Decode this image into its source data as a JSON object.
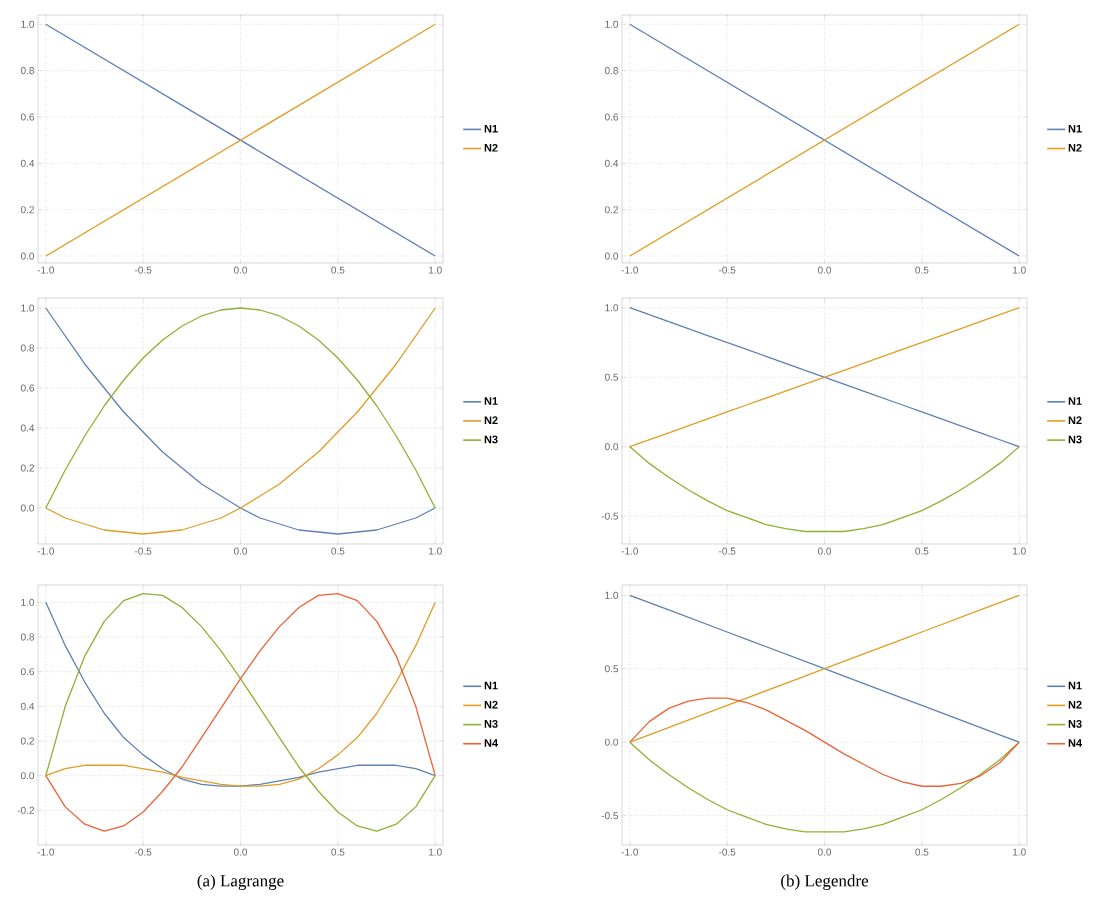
{
  "chart_data": [
    {
      "type": "line",
      "x": [
        -1,
        1
      ],
      "xlim": [
        -1.04,
        1.04
      ],
      "ylim": [
        -0.03,
        1.04
      ],
      "xticks": [
        {
          "value": -1,
          "label": "-1.0"
        },
        {
          "value": -0.5,
          "label": "-0.5"
        },
        {
          "value": 0,
          "label": "0.0"
        },
        {
          "value": 0.5,
          "label": "0.5"
        },
        {
          "value": 1,
          "label": "1.0"
        }
      ],
      "yticks": [
        {
          "value": 0,
          "label": "0.0"
        },
        {
          "value": 0.2,
          "label": "0.2"
        },
        {
          "value": 0.4,
          "label": "0.4"
        },
        {
          "value": 0.6,
          "label": "0.6"
        },
        {
          "value": 0.8,
          "label": "0.8"
        },
        {
          "value": 1,
          "label": "1.0"
        }
      ],
      "grid": true,
      "legend": "right",
      "series": [
        {
          "name": "N1",
          "color": "#5e81b5",
          "values": [
            1,
            0
          ]
        },
        {
          "name": "N2",
          "color": "#e19c24",
          "values": [
            0,
            1
          ]
        }
      ]
    },
    {
      "type": "line",
      "x": [
        -1,
        -0.9,
        -0.8,
        -0.7,
        -0.6,
        -0.5,
        -0.4,
        -0.3,
        -0.2,
        -0.1,
        0,
        0.1,
        0.2,
        0.3,
        0.4,
        0.5,
        0.6,
        0.7,
        0.8,
        0.9,
        1
      ],
      "xlim": [
        -1.04,
        1.04
      ],
      "ylim": [
        -0.18,
        1.05
      ],
      "xticks": [
        {
          "value": -1,
          "label": "-1.0"
        },
        {
          "value": -0.5,
          "label": "-0.5"
        },
        {
          "value": 0,
          "label": "0.0"
        },
        {
          "value": 0.5,
          "label": "0.5"
        },
        {
          "value": 1,
          "label": "1.0"
        }
      ],
      "yticks": [
        {
          "value": 0,
          "label": "0.0"
        },
        {
          "value": 0.2,
          "label": "0.2"
        },
        {
          "value": 0.4,
          "label": "0.4"
        },
        {
          "value": 0.6,
          "label": "0.6"
        },
        {
          "value": 0.8,
          "label": "0.8"
        },
        {
          "value": 1,
          "label": "1.0"
        }
      ],
      "grid": true,
      "legend": "right",
      "series": [
        {
          "name": "N1",
          "color": "#5e81b5",
          "values": [
            1,
            0.86,
            0.72,
            0.6,
            0.48,
            0.38,
            0.28,
            0.2,
            0.12,
            0.06,
            0,
            -0.05,
            -0.08,
            -0.11,
            -0.12,
            -0.13,
            -0.12,
            -0.11,
            -0.08,
            -0.05,
            0
          ]
        },
        {
          "name": "N2",
          "color": "#e19c24",
          "values": [
            0,
            -0.05,
            -0.08,
            -0.11,
            -0.12,
            -0.13,
            -0.12,
            -0.11,
            -0.08,
            -0.05,
            0,
            0.06,
            0.12,
            0.2,
            0.28,
            0.38,
            0.48,
            0.6,
            0.72,
            0.86,
            1
          ]
        },
        {
          "name": "N3",
          "color": "#8fb032",
          "values": [
            0,
            0.19,
            0.36,
            0.51,
            0.64,
            0.75,
            0.84,
            0.91,
            0.96,
            0.99,
            1,
            0.99,
            0.96,
            0.91,
            0.84,
            0.75,
            0.64,
            0.51,
            0.36,
            0.19,
            0
          ]
        }
      ]
    },
    {
      "type": "line",
      "x": [
        -1,
        -0.9,
        -0.8,
        -0.7,
        -0.6,
        -0.5,
        -0.4,
        -0.3,
        -0.2,
        -0.1,
        0,
        0.1,
        0.2,
        0.3,
        0.4,
        0.5,
        0.6,
        0.7,
        0.8,
        0.9,
        1
      ],
      "xlim": [
        -1.04,
        1.04
      ],
      "ylim": [
        -0.4,
        1.1
      ],
      "xticks": [
        {
          "value": -1,
          "label": "-1.0"
        },
        {
          "value": -0.5,
          "label": "-0.5"
        },
        {
          "value": 0,
          "label": "0.0"
        },
        {
          "value": 0.5,
          "label": "0.5"
        },
        {
          "value": 1,
          "label": "1.0"
        }
      ],
      "yticks": [
        {
          "value": -0.2,
          "label": "-0.2"
        },
        {
          "value": 0,
          "label": "0.0"
        },
        {
          "value": 0.2,
          "label": "0.2"
        },
        {
          "value": 0.4,
          "label": "0.4"
        },
        {
          "value": 0.6,
          "label": "0.6"
        },
        {
          "value": 0.8,
          "label": "0.8"
        },
        {
          "value": 1,
          "label": "1.0"
        }
      ],
      "grid": true,
      "legend": "right",
      "annotations": [
        "(a)  Lagrange"
      ],
      "series": [
        {
          "name": "N1",
          "color": "#5e81b5",
          "values": [
            1,
            0.75,
            0.54,
            0.36,
            0.22,
            0.12,
            0.04,
            -0.02,
            -0.05,
            -0.06,
            -0.06,
            -0.05,
            -0.03,
            -0.01,
            0.02,
            0.04,
            0.06,
            0.06,
            0.06,
            0.04,
            0
          ]
        },
        {
          "name": "N2",
          "color": "#e19c24",
          "values": [
            0,
            0.04,
            0.06,
            0.06,
            0.06,
            0.04,
            0.02,
            -0.01,
            -0.03,
            -0.05,
            -0.06,
            -0.06,
            -0.05,
            -0.02,
            0.04,
            0.12,
            0.22,
            0.36,
            0.54,
            0.75,
            1
          ]
        },
        {
          "name": "N3",
          "color": "#8fb032",
          "values": [
            0,
            0.4,
            0.69,
            0.89,
            1.01,
            1.05,
            1.04,
            0.97,
            0.86,
            0.72,
            0.56,
            0.39,
            0.22,
            0.05,
            -0.09,
            -0.21,
            -0.29,
            -0.32,
            -0.28,
            -0.18,
            0
          ]
        },
        {
          "name": "N4",
          "color": "#eb6235",
          "values": [
            0,
            -0.18,
            -0.28,
            -0.32,
            -0.29,
            -0.21,
            -0.09,
            0.05,
            0.22,
            0.39,
            0.56,
            0.72,
            0.86,
            0.97,
            1.04,
            1.05,
            1.01,
            0.89,
            0.69,
            0.4,
            0
          ]
        }
      ]
    },
    {
      "type": "line",
      "x": [
        -1,
        1
      ],
      "xlim": [
        -1.04,
        1.04
      ],
      "ylim": [
        -0.03,
        1.04
      ],
      "xticks": [
        {
          "value": -1,
          "label": "-1.0"
        },
        {
          "value": -0.5,
          "label": "-0.5"
        },
        {
          "value": 0,
          "label": "0.0"
        },
        {
          "value": 0.5,
          "label": "0.5"
        },
        {
          "value": 1,
          "label": "1.0"
        }
      ],
      "yticks": [
        {
          "value": 0,
          "label": "0.0"
        },
        {
          "value": 0.2,
          "label": "0.2"
        },
        {
          "value": 0.4,
          "label": "0.4"
        },
        {
          "value": 0.6,
          "label": "0.6"
        },
        {
          "value": 0.8,
          "label": "0.8"
        },
        {
          "value": 1,
          "label": "1.0"
        }
      ],
      "grid": true,
      "legend": "right",
      "series": [
        {
          "name": "N1",
          "color": "#5e81b5",
          "values": [
            1,
            0
          ]
        },
        {
          "name": "N2",
          "color": "#e19c24",
          "values": [
            0,
            1
          ]
        }
      ]
    },
    {
      "type": "line",
      "x": [
        -1,
        -0.9,
        -0.8,
        -0.7,
        -0.6,
        -0.5,
        -0.4,
        -0.3,
        -0.2,
        -0.1,
        0,
        0.1,
        0.2,
        0.3,
        0.4,
        0.5,
        0.6,
        0.7,
        0.8,
        0.9,
        1
      ],
      "xlim": [
        -1.04,
        1.04
      ],
      "ylim": [
        -0.7,
        1.07
      ],
      "xticks": [
        {
          "value": -1,
          "label": "-1.0"
        },
        {
          "value": -0.5,
          "label": "-0.5"
        },
        {
          "value": 0,
          "label": "0.0"
        },
        {
          "value": 0.5,
          "label": "0.5"
        },
        {
          "value": 1,
          "label": "1.0"
        }
      ],
      "yticks": [
        {
          "value": -0.5,
          "label": "-0.5"
        },
        {
          "value": 0,
          "label": "0.0"
        },
        {
          "value": 0.5,
          "label": "0.5"
        },
        {
          "value": 1,
          "label": "1.0"
        }
      ],
      "grid": true,
      "legend": "right",
      "series": [
        {
          "name": "N1",
          "color": "#5e81b5",
          "values": [
            1,
            0.95,
            0.9,
            0.85,
            0.8,
            0.75,
            0.7,
            0.65,
            0.6,
            0.55,
            0.5,
            0.45,
            0.4,
            0.35,
            0.3,
            0.25,
            0.2,
            0.15,
            0.1,
            0.05,
            0
          ]
        },
        {
          "name": "N2",
          "color": "#e19c24",
          "values": [
            0,
            0.05,
            0.1,
            0.15,
            0.2,
            0.25,
            0.3,
            0.35,
            0.4,
            0.45,
            0.5,
            0.55,
            0.6,
            0.65,
            0.7,
            0.75,
            0.8,
            0.85,
            0.9,
            0.95,
            1
          ]
        },
        {
          "name": "N3",
          "color": "#8fb032",
          "values": [
            0,
            -0.12,
            -0.22,
            -0.31,
            -0.39,
            -0.46,
            -0.51,
            -0.56,
            -0.59,
            -0.61,
            -0.61,
            -0.61,
            -0.59,
            -0.56,
            -0.51,
            -0.46,
            -0.39,
            -0.31,
            -0.22,
            -0.12,
            0
          ]
        }
      ]
    },
    {
      "type": "line",
      "x": [
        -1,
        -0.9,
        -0.8,
        -0.7,
        -0.6,
        -0.5,
        -0.4,
        -0.3,
        -0.2,
        -0.1,
        0,
        0.1,
        0.2,
        0.3,
        0.4,
        0.5,
        0.6,
        0.7,
        0.8,
        0.9,
        1
      ],
      "xlim": [
        -1.04,
        1.04
      ],
      "ylim": [
        -0.7,
        1.07
      ],
      "xticks": [
        {
          "value": -1,
          "label": "-1.0"
        },
        {
          "value": -0.5,
          "label": "-0.5"
        },
        {
          "value": 0,
          "label": "0.0"
        },
        {
          "value": 0.5,
          "label": "0.5"
        },
        {
          "value": 1,
          "label": "1.0"
        }
      ],
      "yticks": [
        {
          "value": -0.5,
          "label": "-0.5"
        },
        {
          "value": 0,
          "label": "0.0"
        },
        {
          "value": 0.5,
          "label": "0.5"
        },
        {
          "value": 1,
          "label": "1.0"
        }
      ],
      "grid": true,
      "legend": "right",
      "annotations": [
        "(b)  Legendre"
      ],
      "series": [
        {
          "name": "N1",
          "color": "#5e81b5",
          "values": [
            1,
            0.95,
            0.9,
            0.85,
            0.8,
            0.75,
            0.7,
            0.65,
            0.6,
            0.55,
            0.5,
            0.45,
            0.4,
            0.35,
            0.3,
            0.25,
            0.2,
            0.15,
            0.1,
            0.05,
            0
          ]
        },
        {
          "name": "N2",
          "color": "#e19c24",
          "values": [
            0,
            0.05,
            0.1,
            0.15,
            0.2,
            0.25,
            0.3,
            0.35,
            0.4,
            0.45,
            0.5,
            0.55,
            0.6,
            0.65,
            0.7,
            0.75,
            0.8,
            0.85,
            0.9,
            0.95,
            1
          ]
        },
        {
          "name": "N3",
          "color": "#8fb032",
          "values": [
            0,
            -0.12,
            -0.22,
            -0.31,
            -0.39,
            -0.46,
            -0.51,
            -0.56,
            -0.59,
            -0.61,
            -0.61,
            -0.61,
            -0.59,
            -0.56,
            -0.51,
            -0.46,
            -0.39,
            -0.31,
            -0.22,
            -0.12,
            0
          ]
        },
        {
          "name": "N4",
          "color": "#eb6235",
          "values": [
            0,
            0.14,
            0.23,
            0.28,
            0.3,
            0.3,
            0.27,
            0.22,
            0.15,
            0.08,
            0,
            -0.08,
            -0.15,
            -0.22,
            -0.27,
            -0.3,
            -0.3,
            -0.28,
            -0.23,
            -0.14,
            0
          ]
        }
      ]
    }
  ]
}
